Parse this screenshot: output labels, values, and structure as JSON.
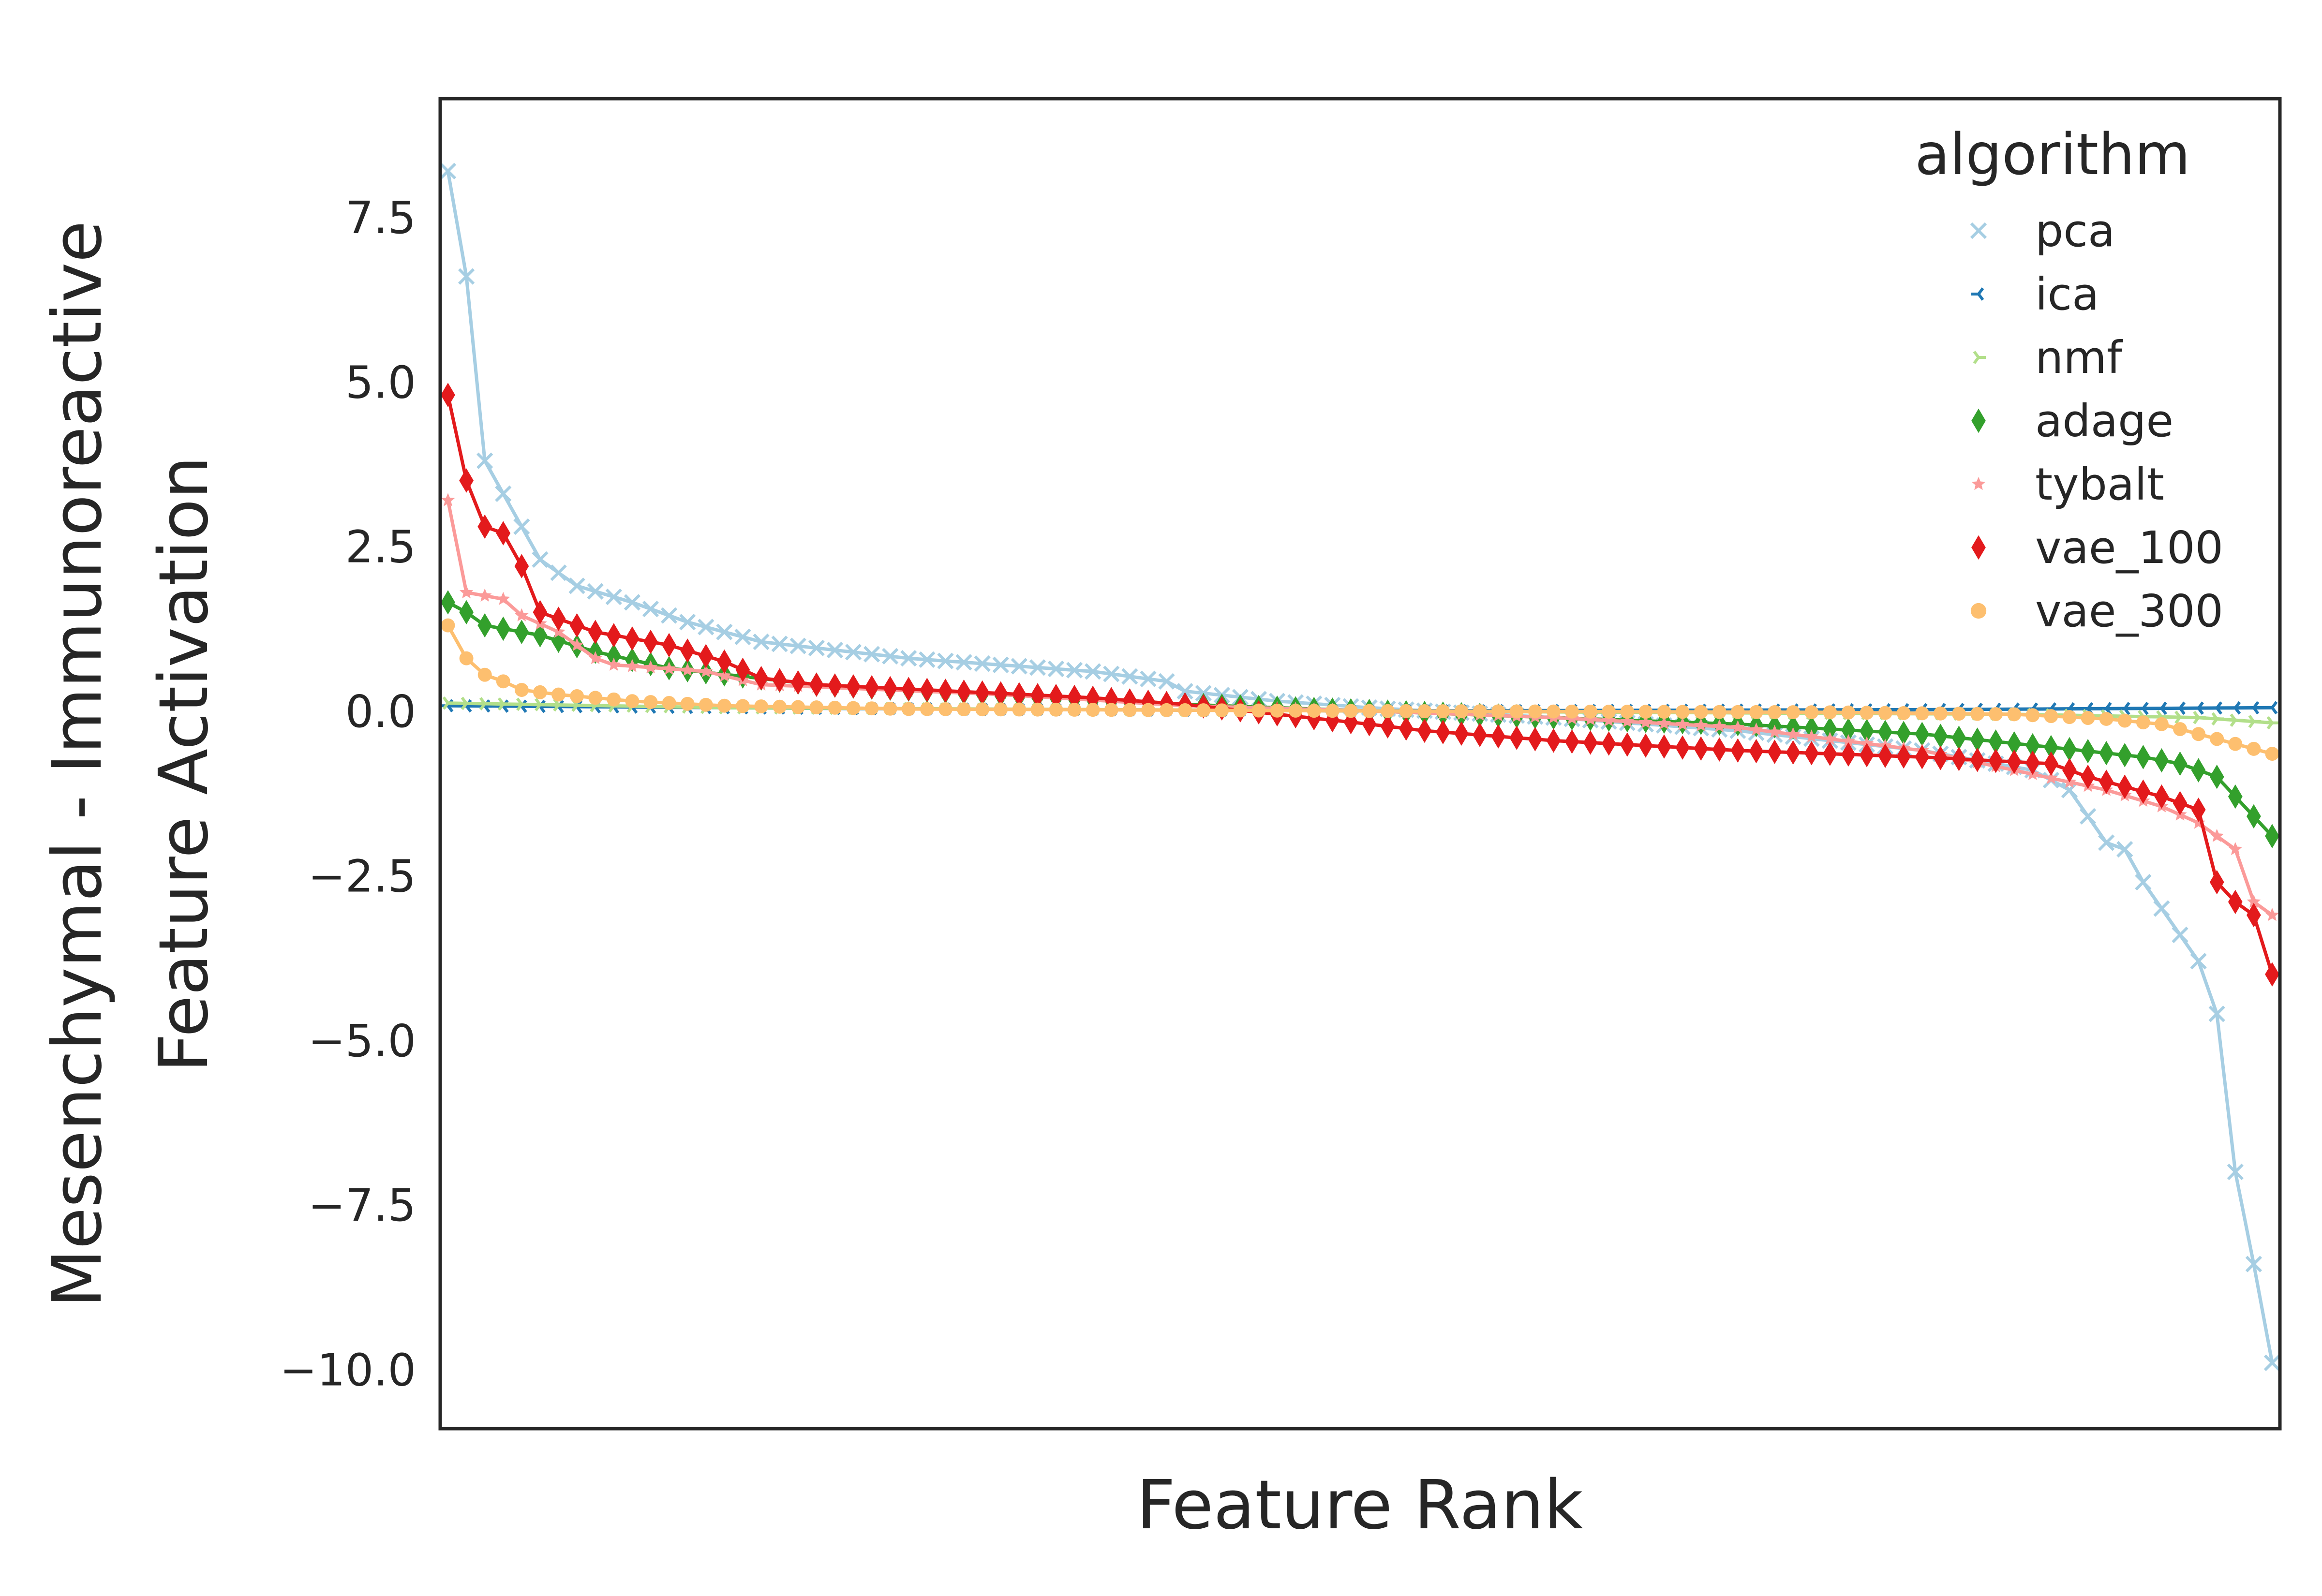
{
  "chart_data": {
    "type": "line",
    "xlabel": "Feature Rank",
    "ylabel": [
      "Mesenchymal - Immunoreactive",
      "Feature Activation"
    ],
    "ylim": [
      -10.9,
      9.3
    ],
    "xlim": [
      0,
      100
    ],
    "yticks": [
      7.5,
      5.0,
      2.5,
      0.0,
      -2.5,
      -5.0,
      -7.5,
      -10.0
    ],
    "ytick_labels": [
      "7.5",
      "5.0",
      "2.5",
      "0.0",
      "−2.5",
      "−5.0",
      "−7.5",
      "−10.0"
    ],
    "grid": false,
    "legend": {
      "title": "algorithm",
      "position": "top-right"
    },
    "series": [
      {
        "name": "pca",
        "color": "#a6cee3",
        "marker": "x",
        "n": 100,
        "knots": [
          [
            0,
            8.2
          ],
          [
            1,
            6.6
          ],
          [
            2,
            3.8
          ],
          [
            3,
            3.3
          ],
          [
            4,
            2.8
          ],
          [
            5,
            2.3
          ],
          [
            7,
            1.9
          ],
          [
            10,
            1.65
          ],
          [
            13,
            1.35
          ],
          [
            17,
            1.05
          ],
          [
            25,
            0.8
          ],
          [
            35,
            0.6
          ],
          [
            39,
            0.45
          ],
          [
            40,
            0.3
          ],
          [
            45,
            0.15
          ],
          [
            50,
            0.05
          ],
          [
            60,
            -0.1
          ],
          [
            70,
            -0.3
          ],
          [
            80,
            -0.6
          ],
          [
            86,
            -0.9
          ],
          [
            88,
            -1.2
          ],
          [
            89,
            -1.6
          ],
          [
            90,
            -2.0
          ],
          [
            91,
            -2.1
          ],
          [
            92,
            -2.6
          ],
          [
            93,
            -3.0
          ],
          [
            94,
            -3.4
          ],
          [
            95,
            -3.8
          ],
          [
            96,
            -4.6
          ],
          [
            97,
            -7.0
          ],
          [
            98,
            -8.4
          ],
          [
            99,
            -9.9
          ]
        ]
      },
      {
        "name": "ica",
        "color": "#1f78b4",
        "marker": "tri_left",
        "n": 100,
        "knots": [
          [
            0,
            0.08
          ],
          [
            20,
            0.04
          ],
          [
            50,
            0.0
          ],
          [
            80,
            0.02
          ],
          [
            99,
            0.05
          ]
        ]
      },
      {
        "name": "nmf",
        "color": "#b2df8a",
        "marker": "tri_right",
        "n": 100,
        "knots": [
          [
            0,
            0.12
          ],
          [
            15,
            0.05
          ],
          [
            50,
            0.0
          ],
          [
            85,
            -0.05
          ],
          [
            95,
            -0.1
          ],
          [
            99,
            -0.18
          ]
        ]
      },
      {
        "name": "adage",
        "color": "#33a02c",
        "marker": "diamond",
        "n": 100,
        "knots": [
          [
            0,
            1.65
          ],
          [
            1,
            1.5
          ],
          [
            2,
            1.3
          ],
          [
            5,
            1.15
          ],
          [
            8,
            0.9
          ],
          [
            12,
            0.65
          ],
          [
            20,
            0.4
          ],
          [
            30,
            0.25
          ],
          [
            40,
            0.1
          ],
          [
            50,
            0.0
          ],
          [
            60,
            -0.1
          ],
          [
            70,
            -0.2
          ],
          [
            80,
            -0.35
          ],
          [
            87,
            -0.55
          ],
          [
            92,
            -0.7
          ],
          [
            94,
            -0.8
          ],
          [
            96,
            -1.0
          ],
          [
            97,
            -1.3
          ],
          [
            98,
            -1.6
          ],
          [
            99,
            -1.9
          ]
        ]
      },
      {
        "name": "tybalt",
        "color": "#fb9a99",
        "marker": "star",
        "n": 100,
        "knots": [
          [
            0,
            3.2
          ],
          [
            1,
            1.8
          ],
          [
            3,
            1.7
          ],
          [
            4,
            1.45
          ],
          [
            6,
            1.2
          ],
          [
            8,
            0.8
          ],
          [
            9,
            0.7
          ],
          [
            14,
            0.6
          ],
          [
            17,
            0.4
          ],
          [
            30,
            0.25
          ],
          [
            40,
            0.08
          ],
          [
            50,
            0.0
          ],
          [
            60,
            -0.1
          ],
          [
            70,
            -0.25
          ],
          [
            80,
            -0.6
          ],
          [
            85,
            -0.9
          ],
          [
            90,
            -1.2
          ],
          [
            93,
            -1.45
          ],
          [
            95,
            -1.7
          ],
          [
            96,
            -1.9
          ],
          [
            97,
            -2.1
          ],
          [
            98,
            -2.9
          ],
          [
            99,
            -3.1
          ]
        ]
      },
      {
        "name": "vae_100",
        "color": "#e31a1c",
        "marker": "diamond",
        "n": 100,
        "knots": [
          [
            0,
            4.8
          ],
          [
            1,
            3.5
          ],
          [
            2,
            2.8
          ],
          [
            3,
            2.7
          ],
          [
            4,
            2.2
          ],
          [
            5,
            1.5
          ],
          [
            8,
            1.2
          ],
          [
            12,
            1.0
          ],
          [
            15,
            0.75
          ],
          [
            17,
            0.5
          ],
          [
            20,
            0.4
          ],
          [
            35,
            0.2
          ],
          [
            40,
            0.1
          ],
          [
            50,
            -0.2
          ],
          [
            53,
            -0.3
          ],
          [
            60,
            -0.45
          ],
          [
            70,
            -0.6
          ],
          [
            80,
            -0.7
          ],
          [
            87,
            -0.8
          ],
          [
            89,
            -1.0
          ],
          [
            93,
            -1.3
          ],
          [
            95,
            -1.5
          ],
          [
            96,
            -2.6
          ],
          [
            97,
            -2.9
          ],
          [
            98,
            -3.1
          ],
          [
            99,
            -4.0
          ]
        ]
      },
      {
        "name": "vae_300",
        "color": "#fdbf6f",
        "marker": "circle",
        "n": 100,
        "knots": [
          [
            0,
            1.3
          ],
          [
            1,
            0.8
          ],
          [
            2,
            0.55
          ],
          [
            3,
            0.45
          ],
          [
            4,
            0.32
          ],
          [
            6,
            0.25
          ],
          [
            10,
            0.15
          ],
          [
            15,
            0.08
          ],
          [
            25,
            0.03
          ],
          [
            50,
            0.0
          ],
          [
            75,
            -0.02
          ],
          [
            85,
            -0.05
          ],
          [
            90,
            -0.12
          ],
          [
            93,
            -0.2
          ],
          [
            95,
            -0.35
          ],
          [
            97,
            -0.5
          ],
          [
            99,
            -0.65
          ]
        ]
      }
    ]
  }
}
